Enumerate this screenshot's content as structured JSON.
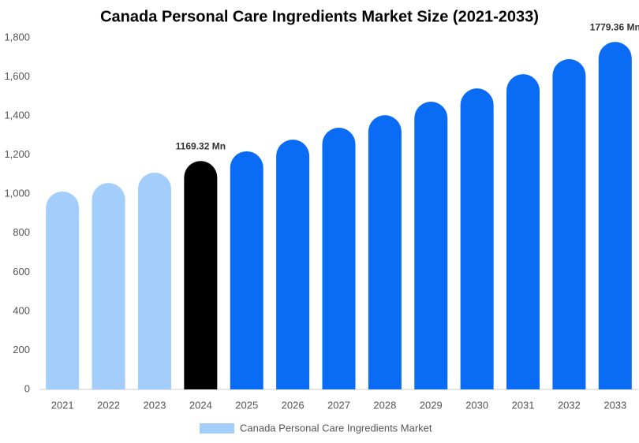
{
  "chart_data": {
    "type": "bar",
    "title": "Canada Personal Care Ingredients Market Size (2021-2033)",
    "categories": [
      "2021",
      "2022",
      "2023",
      "2024",
      "2025",
      "2026",
      "2027",
      "2028",
      "2029",
      "2030",
      "2031",
      "2032",
      "2033"
    ],
    "series": [
      {
        "name": "Canada Personal Care Ingredients Market",
        "color": "#a3cdfa",
        "values": [
          1013,
          1057,
          1110,
          1169.32,
          1219,
          1279,
          1340,
          1404,
          1473,
          1541,
          1614,
          1691,
          1779.36
        ],
        "value_labels": [
          null,
          null,
          null,
          "1169.32 Mn",
          null,
          null,
          null,
          null,
          null,
          null,
          null,
          null,
          "1779.36 Mn"
        ],
        "colors": [
          "#a3cdfa",
          "#a3cdfa",
          "#a3cdfa",
          "#000000",
          "#0a6cf5",
          "#0a6cf5",
          "#0a6cf5",
          "#0a6cf5",
          "#0a6cf5",
          "#0a6cf5",
          "#0a6cf5",
          "#0a6cf5",
          "#0a6cf5"
        ]
      }
    ],
    "ylim": [
      0,
      1800
    ],
    "yticks": [
      0,
      200,
      400,
      600,
      800,
      {
        "value": 1000,
        "label": "1,000"
      },
      {
        "value": 1200,
        "label": "1,200"
      },
      {
        "value": 1400,
        "label": "1,400"
      },
      {
        "value": 1600,
        "label": "1,600"
      },
      {
        "value": 1800,
        "label": "1,800"
      }
    ],
    "grid": false
  }
}
